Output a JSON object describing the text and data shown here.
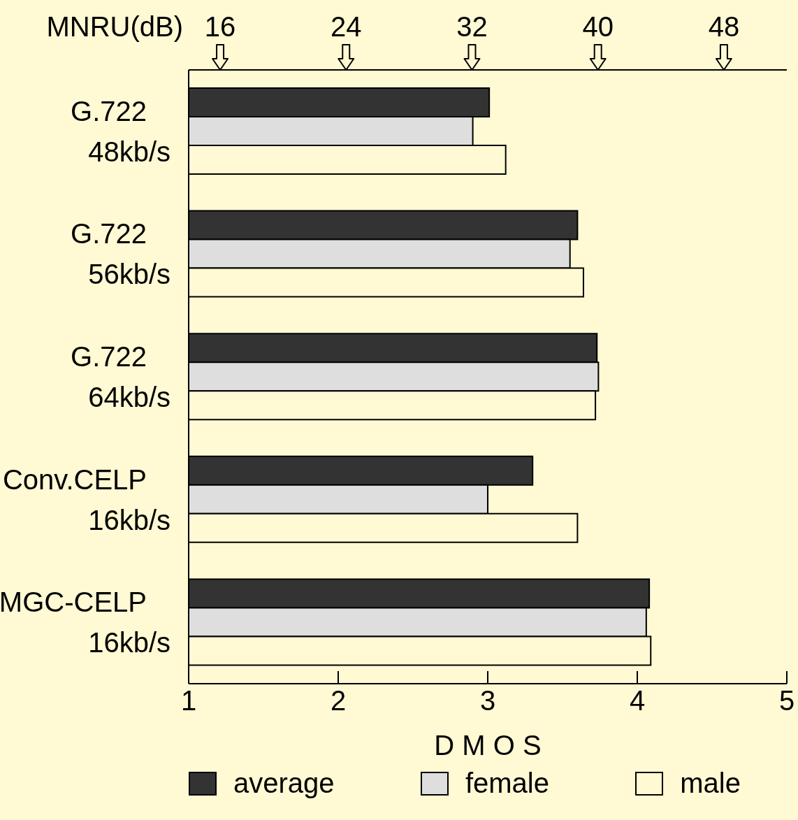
{
  "chart_data": {
    "type": "bar",
    "orientation": "horizontal",
    "xlabel": "D M O S",
    "categories": [
      "G.722 48kb/s",
      "G.722 56kb/s",
      "G.722 64kb/s",
      "Conv.CELP 16kb/s",
      "MGC-CELP 16kb/s"
    ],
    "series": [
      {
        "name": "average",
        "color": "#333333",
        "values": [
          3.01,
          3.6,
          3.73,
          3.3,
          4.08
        ]
      },
      {
        "name": "female",
        "color": "#dedede",
        "values": [
          2.9,
          3.55,
          3.74,
          3.0,
          4.06
        ]
      },
      {
        "name": "male",
        "color": "#fff9d4",
        "values": [
          3.12,
          3.64,
          3.72,
          3.6,
          4.09
        ]
      }
    ],
    "xlim": [
      1,
      5
    ],
    "xticks": [
      1,
      2,
      3,
      4,
      5
    ],
    "x2label": "MNRU(dB)",
    "x2lim": [
      14,
      52
    ],
    "x2ticks": [
      16,
      24,
      32,
      40,
      48
    ],
    "grid": false,
    "legend": "bottom"
  }
}
